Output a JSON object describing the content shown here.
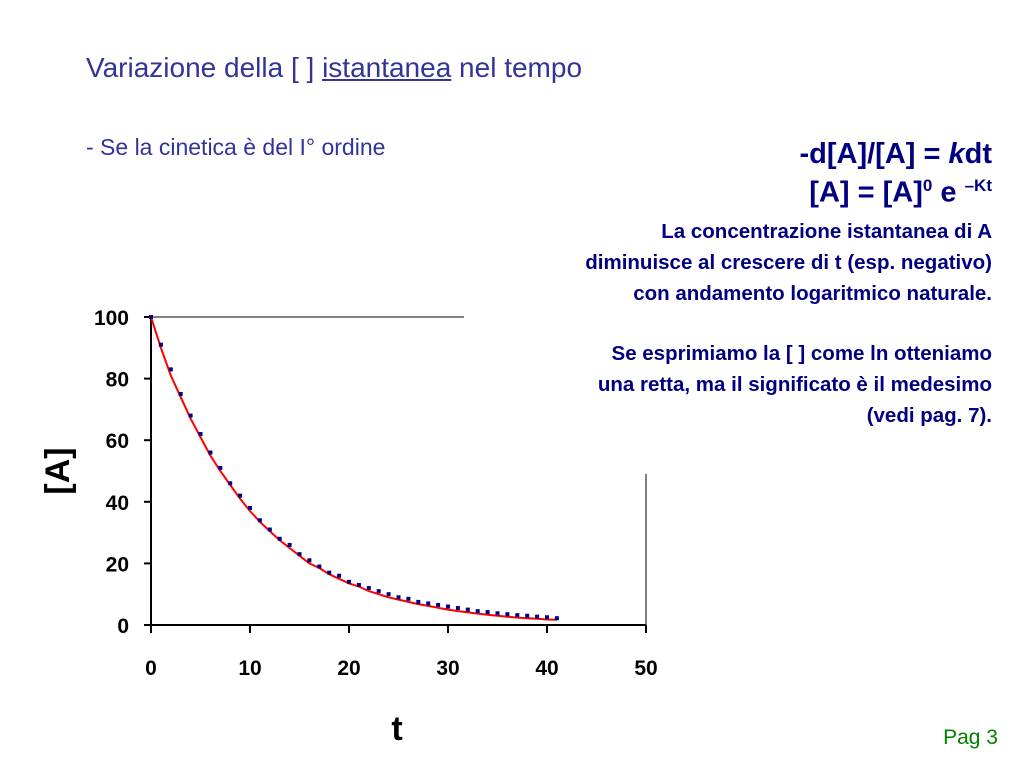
{
  "title": {
    "part1": "Variazione della [ ] ",
    "underlined": "istantanea",
    "part2": " nel tempo"
  },
  "subtitle": "- Se la cinetica è del I° ordine",
  "formula1": {
    "pre": "-d[A]/[A] = ",
    "k": "k",
    "post": "dt"
  },
  "formula2": {
    "base": "[A] = [A]",
    "sub0": "0",
    "e": " e ",
    "exp": "–Kt"
  },
  "description1": [
    "La concentrazione istantanea di A",
    "diminuisce al crescere di t (esp. negativo)",
    "con andamento logaritmico naturale."
  ],
  "description2": [
    "Se esprimiamo la [ ] come ln otteniamo",
    "una retta, ma il significato è il medesimo",
    "(vedi pag. 7)."
  ],
  "page_label": "Pag 3",
  "chart_data": {
    "type": "scatter",
    "xlabel": "t",
    "ylabel": "[A]",
    "xlim": [
      0,
      50
    ],
    "ylim": [
      0,
      100
    ],
    "x_ticks": [
      0,
      10,
      20,
      30,
      40,
      50
    ],
    "y_ticks": [
      0,
      20,
      40,
      60,
      80,
      100
    ],
    "reference_line_y": 100,
    "grid": false,
    "series": [
      {
        "marker": "square",
        "color": "#000080",
        "x": [
          0,
          1,
          2,
          3,
          4,
          5,
          6,
          7,
          8,
          9,
          10,
          11,
          12,
          13,
          14,
          15,
          16,
          17,
          18,
          19,
          20,
          21,
          22,
          23,
          24,
          25,
          26,
          27,
          28,
          29,
          30,
          31,
          32,
          33,
          34,
          35,
          36,
          37,
          38,
          39,
          40,
          41
        ],
        "y": [
          100,
          91,
          83,
          75,
          68,
          62,
          56,
          51,
          46,
          42,
          38,
          34,
          31,
          28,
          26,
          23,
          21,
          19,
          17,
          16,
          14,
          13,
          12,
          11,
          10,
          9,
          8.5,
          7.5,
          7,
          6.5,
          6,
          5.5,
          5,
          4.5,
          4.2,
          3.8,
          3.5,
          3.2,
          3,
          2.7,
          2.5,
          2.2
        ]
      },
      {
        "type": "line",
        "color": "#ff0000",
        "x": [
          0,
          1,
          2,
          3,
          4,
          5,
          6,
          7,
          8,
          9,
          10,
          11,
          12,
          13,
          14,
          15,
          16,
          17,
          18,
          19,
          20,
          21,
          22,
          23,
          24,
          25,
          26,
          27,
          28,
          29,
          30,
          31,
          32,
          33,
          34,
          35,
          36,
          37,
          38,
          39,
          40,
          41
        ],
        "y": [
          100,
          90,
          81,
          74,
          67,
          61,
          55,
          50,
          45.5,
          41,
          37,
          33.5,
          30.5,
          27.5,
          25,
          22.5,
          20,
          18.5,
          16.5,
          15,
          13.5,
          12.5,
          11,
          10,
          9,
          8.2,
          7.5,
          6.8,
          6.2,
          5.6,
          5,
          4.5,
          4.1,
          3.7,
          3.3,
          3,
          2.7,
          2.4,
          2.2,
          2,
          1.8,
          1.7
        ]
      }
    ]
  }
}
